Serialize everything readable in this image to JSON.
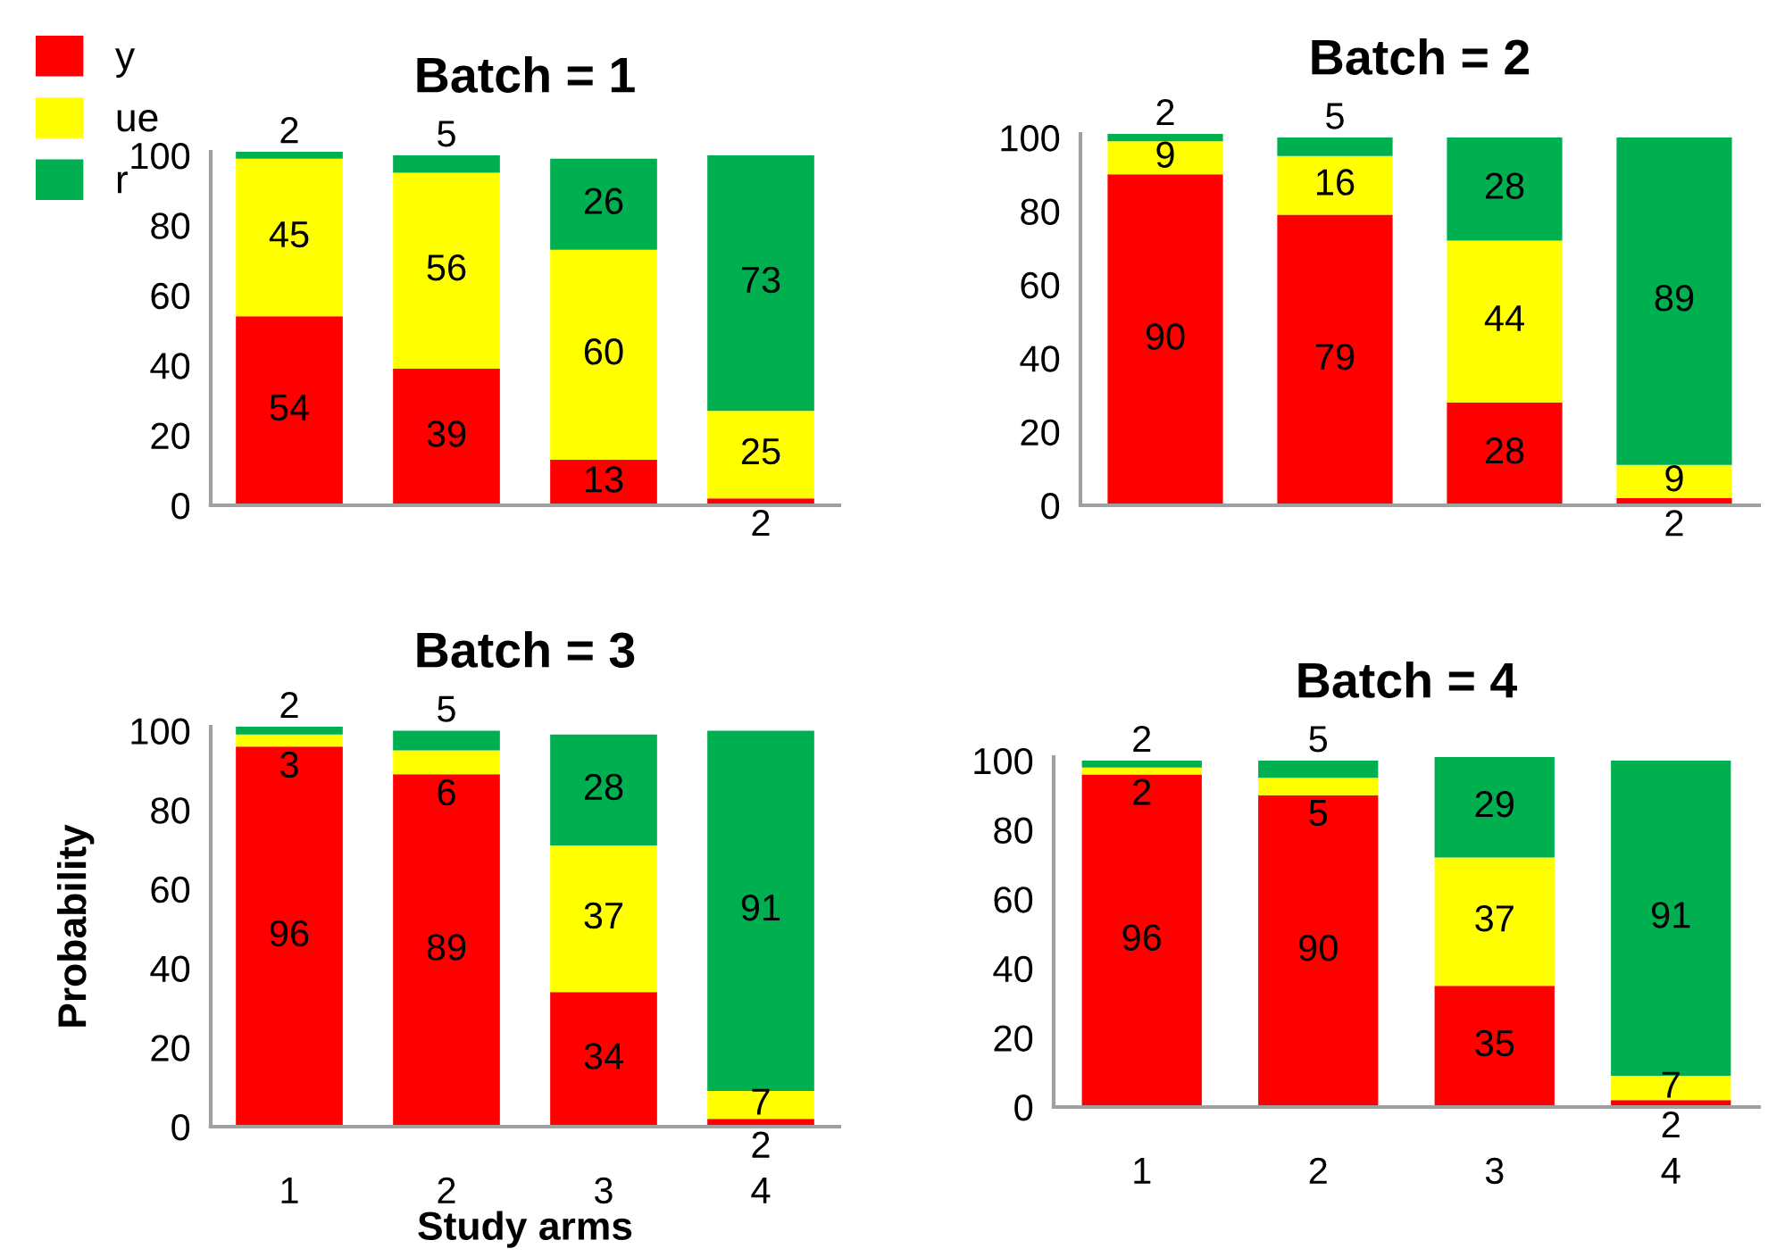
{
  "chart_data": [
    {
      "type": "bar",
      "title": "Batch = 1",
      "stacked": true,
      "data_labels": true,
      "categories": [
        "1",
        "2",
        "3",
        "4"
      ],
      "ylim": [
        0,
        101
      ],
      "yticks": [
        0,
        20,
        40,
        60,
        80,
        100
      ],
      "tick_labels": "y",
      "grid": false,
      "legend": "top left",
      "series": [
        {
          "name": "y",
          "color": "#ff0000",
          "values": [
            54,
            39,
            13,
            2
          ]
        },
        {
          "name": "ue",
          "color": "#ffff00",
          "values": [
            45,
            56,
            60,
            25
          ]
        },
        {
          "name": "r",
          "color": "#00b050",
          "values": [
            2,
            5,
            26,
            73
          ]
        }
      ]
    },
    {
      "type": "bar",
      "title": "Batch = 2",
      "stacked": true,
      "data_labels": true,
      "categories": [
        "1",
        "2",
        "3",
        "4"
      ],
      "ylim": [
        0,
        101
      ],
      "yticks": [
        0,
        20,
        40,
        60,
        80,
        100
      ],
      "tick_labels": "y",
      "grid": false,
      "series": [
        {
          "color": "#ff0000",
          "values": [
            90,
            79,
            28,
            2
          ]
        },
        {
          "color": "#ffff00",
          "values": [
            9,
            16,
            44,
            9
          ]
        },
        {
          "color": "#00b050",
          "values": [
            2,
            5,
            28,
            89
          ]
        }
      ]
    },
    {
      "type": "bar",
      "title": "Batch = 3",
      "xlabel": "Study arms",
      "ylabel": "Probability",
      "stacked": true,
      "data_labels": true,
      "categories": [
        "1",
        "2",
        "3",
        "4"
      ],
      "ylim": [
        0,
        101
      ],
      "yticks": [
        0,
        20,
        40,
        60,
        80,
        100
      ],
      "grid": false,
      "series": [
        {
          "color": "#ff0000",
          "values": [
            96,
            89,
            34,
            2
          ]
        },
        {
          "color": "#ffff00",
          "values": [
            3,
            6,
            37,
            7
          ]
        },
        {
          "color": "#00b050",
          "values": [
            2,
            5,
            28,
            91
          ]
        }
      ]
    },
    {
      "type": "bar",
      "title": "Batch = 4",
      "stacked": true,
      "data_labels": true,
      "categories": [
        "1",
        "2",
        "3",
        "4"
      ],
      "ylim": [
        0,
        101
      ],
      "yticks": [
        0,
        20,
        40,
        60,
        80,
        100
      ],
      "grid": false,
      "series": [
        {
          "color": "#ff0000",
          "values": [
            96,
            90,
            35,
            2
          ]
        },
        {
          "color": "#ffff00",
          "values": [
            2,
            5,
            37,
            7
          ]
        },
        {
          "color": "#00b050",
          "values": [
            2,
            5,
            29,
            91
          ]
        }
      ]
    }
  ]
}
